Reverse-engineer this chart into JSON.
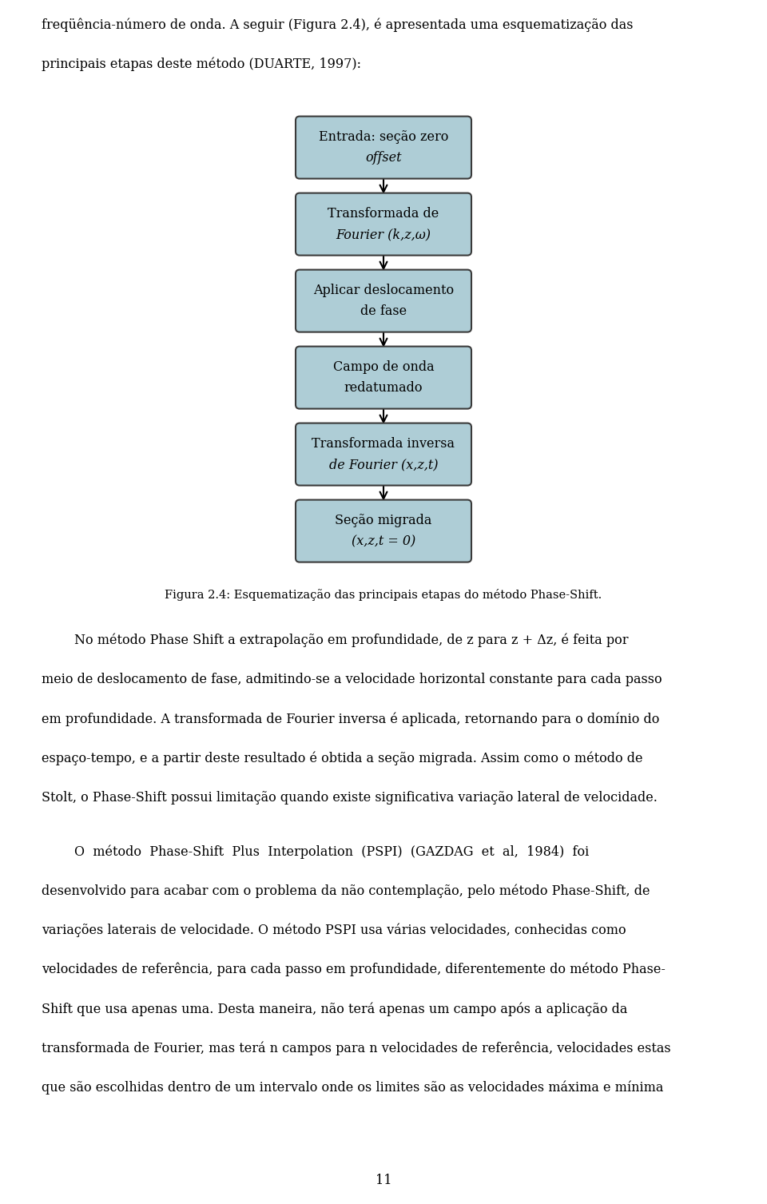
{
  "bg_color": "#ffffff",
  "box_fill": "#aecdd6",
  "box_edge": "#3a3a3a",
  "boxes": [
    {
      "label_lines": [
        "Entrada: seção zero",
        "offset"
      ],
      "italic": [
        false,
        true
      ]
    },
    {
      "label_lines": [
        "Transformada de",
        "Fourier (k,z,ω)"
      ],
      "italic": [
        false,
        true
      ]
    },
    {
      "label_lines": [
        "Aplicar deslocamento",
        "de fase"
      ],
      "italic": [
        false,
        false
      ]
    },
    {
      "label_lines": [
        "Campo de onda",
        "redatumado"
      ],
      "italic": [
        false,
        false
      ]
    },
    {
      "label_lines": [
        "Transformada inversa",
        "de Fourier (x,z,t)"
      ],
      "italic": [
        false,
        true
      ]
    },
    {
      "label_lines": [
        "Seção migrada",
        "(x,z,t = 0)"
      ],
      "italic": [
        false,
        true
      ]
    }
  ],
  "top_text_lines": [
    "freqüência-número de onda. A seguir (Figura 2.4), é apresentada uma esquematização das",
    "principais etapas deste método (DUARTE, 1997):"
  ],
  "caption": "Figura 2.4: Esquematização das principais etapas do método Phase-Shift.",
  "para1_lines": [
    "        No método Phase Shift a extrapolação em profundidade, de z para z + Δz, é feita por",
    "meio de deslocamento de fase, admitindo-se a velocidade horizontal constante para cada passo",
    "em profundidade. A transformada de Fourier inversa é aplicada, retornando para o domínio do",
    "espaço-tempo, e a partir deste resultado é obtida a seção migrada. Assim como o método de",
    "Stolt, o Phase-Shift possui limitação quando existe significativa variação lateral de velocidade."
  ],
  "para2_lines": [
    "        O  método  Phase-Shift  Plus  Interpolation  (PSPI)  (GAZDAG  et  al,  1984)  foi",
    "desenvolvido para acabar com o problema da não contemplação, pelo método Phase-Shift, de",
    "variações laterais de velocidade. O método PSPI usa várias velocidades, conhecidas como",
    "velocidades de referência, para cada passo em profundidade, diferentemente do método Phase-",
    "Shift que usa apenas uma. Desta maneira, não terá apenas um campo após a aplicação da",
    "transformada de Fourier, mas terá n campos para n velocidades de referência, velocidades estas",
    "que são escolhidas dentro de um intervalo onde os limites são as velocidades máxima e mínima"
  ],
  "page_number": "11",
  "font_size_body": 11.5,
  "font_size_box": 11.5,
  "font_size_caption": 10.5
}
